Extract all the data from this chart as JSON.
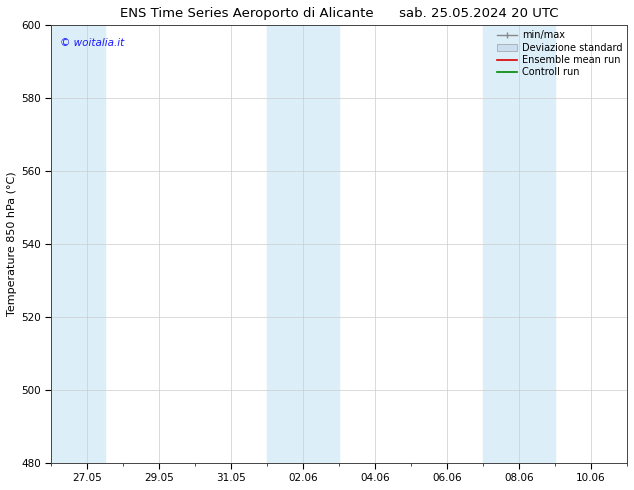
{
  "title_left": "ENS Time Series Aeroporto di Alicante",
  "title_right": "sab. 25.05.2024 20 UTC",
  "ylabel": "Temperature 850 hPa (°C)",
  "watermark": "© woitalia.it",
  "watermark_color": "#1a1aff",
  "ylim": [
    480,
    600
  ],
  "yticks": [
    480,
    500,
    520,
    540,
    560,
    580,
    600
  ],
  "bg_color": "#ffffff",
  "plot_bg_color": "#ffffff",
  "shaded_color": "#dceef8",
  "grid_color": "#cccccc",
  "tick_label_fontsize": 7.5,
  "axis_label_fontsize": 8,
  "title_fontsize": 9.5,
  "legend_fontsize": 7,
  "xtick_labels": [
    "27.05",
    "29.05",
    "31.05",
    "02.06",
    "04.06",
    "06.06",
    "08.06",
    "10.06"
  ],
  "xtick_positions": [
    1,
    3,
    5,
    7,
    9,
    11,
    13,
    15
  ],
  "band_ranges": [
    [
      0,
      1.5
    ],
    [
      6.0,
      8.0
    ],
    [
      12.0,
      14.0
    ]
  ],
  "xlim": [
    0,
    16
  ]
}
